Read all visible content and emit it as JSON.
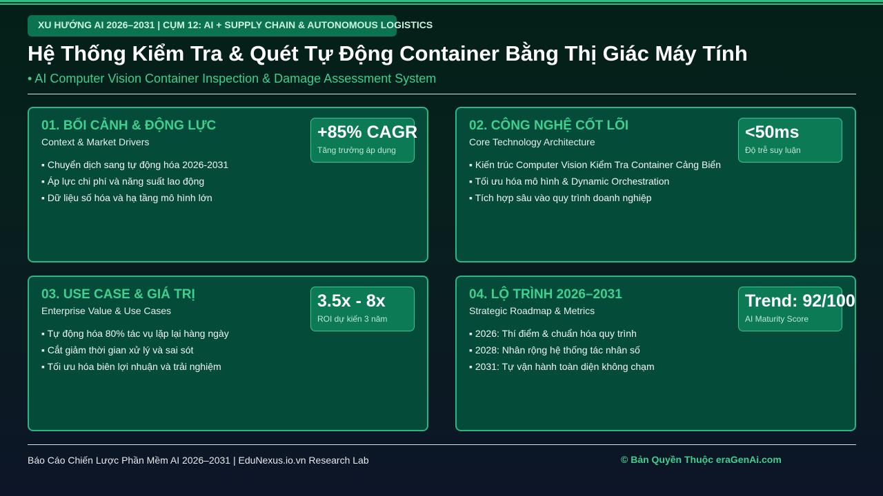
{
  "header": {
    "tag": "XU HƯỚNG AI 2026–2031 | CỤM 12: AI + SUPPLY CHAIN & AUTONOMOUS LOGISTICS",
    "title": "Hệ Thống Kiểm Tra & Quét Tự Động Container Bằng Thị Giác Máy Tính",
    "subtitle": "• AI Computer Vision Container Inspection & Damage Assessment System"
  },
  "cards": [
    {
      "title": "01. BỐI CẢNH & ĐỘNG LỰC",
      "subtitle": "Context & Market Drivers",
      "items": [
        "Chuyển dịch sang tự động hóa 2026-2031",
        "Áp lực chi phí và năng suất lao động",
        "Dữ liệu số hóa và hạ tầng mô hình lớn"
      ],
      "metric_value": "+85% CAGR",
      "metric_label": "Tăng trưởng áp dụng"
    },
    {
      "title": "02. CÔNG NGHỆ CỐT LÕI",
      "subtitle": "Core Technology Architecture",
      "items": [
        "Kiến trúc Computer Vision Kiểm Tra Container Cảng Biển",
        "Tối ưu hóa mô hình & Dynamic Orchestration",
        "Tích hợp sâu vào quy trình doanh nghiệp"
      ],
      "metric_value": "<50ms",
      "metric_label": "Độ trễ suy luận"
    },
    {
      "title": "03. USE CASE & GIÁ TRỊ",
      "subtitle": "Enterprise Value & Use Cases",
      "items": [
        "Tự động hóa 80% tác vụ lặp lại hàng ngày",
        "Cắt giảm thời gian xử lý và sai sót",
        "Tối ưu hóa biên lợi nhuận và trải nghiệm"
      ],
      "metric_value": "3.5x - 8x",
      "metric_label": "ROI dự kiến 3 năm"
    },
    {
      "title": "04. LỘ TRÌNH 2026–2031",
      "subtitle": "Strategic Roadmap & Metrics",
      "items": [
        "2026: Thí điểm & chuẩn hóa quy trình",
        "2028: Nhân rộng hệ thống tác nhân số",
        "2031: Tự vận hành toàn diện không chạm"
      ],
      "metric_value": "Trend: 92/100",
      "metric_label": "AI Maturity Score"
    }
  ],
  "footer": {
    "left": "Báo Cáo Chiến Lược Phần Mềm AI 2026–2031 | EduNexus.io.vn Research Lab",
    "right": "© Bản Quyền Thuộc eraGenAi.com"
  }
}
